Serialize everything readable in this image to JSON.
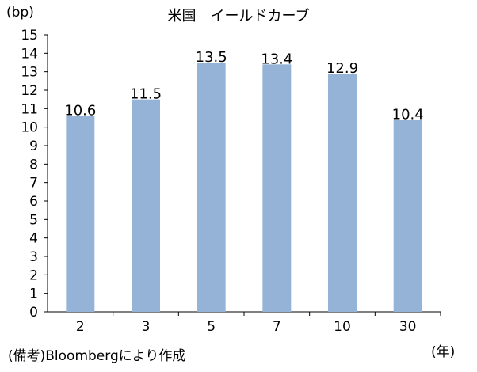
{
  "chart_data": {
    "type": "bar",
    "title": "米国　イールドカーブ",
    "ylabel": "(bp)",
    "xlabel": "(年)",
    "categories": [
      "2",
      "3",
      "5",
      "7",
      "10",
      "30"
    ],
    "values": [
      10.6,
      11.5,
      13.5,
      13.4,
      12.9,
      10.4
    ],
    "data_labels": [
      "10.6",
      "11.5",
      "13.5",
      "13.4",
      "12.9",
      "10.4"
    ],
    "ylim": [
      0,
      15
    ],
    "yticks": [
      0,
      1,
      2,
      3,
      4,
      5,
      6,
      7,
      8,
      9,
      10,
      11,
      12,
      13,
      14,
      15
    ],
    "grid": false,
    "legend": "none",
    "bar_color": "#95b3d7",
    "source": "(備考)Bloombergにより作成"
  }
}
